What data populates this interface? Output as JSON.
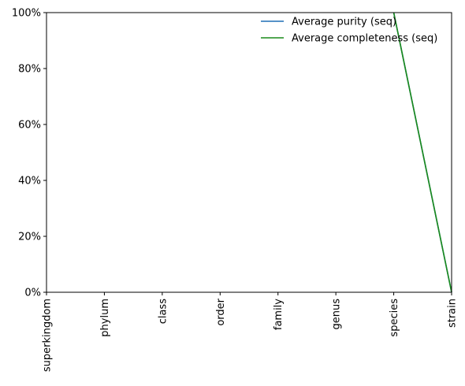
{
  "chart_data": {
    "type": "line",
    "categories": [
      "superkingdom",
      "phylum",
      "class",
      "order",
      "family",
      "genus",
      "species",
      "strain"
    ],
    "y_ticks": [
      "0%",
      "20%",
      "40%",
      "60%",
      "80%",
      "100%"
    ],
    "ylim": [
      0,
      100
    ],
    "legend_position": "top-right",
    "grid": false,
    "series": [
      {
        "name": "Average purity (seq)",
        "color": "#1f6fb5",
        "values": [
          null,
          null,
          null,
          null,
          null,
          null,
          100,
          0
        ]
      },
      {
        "name": "Average completeness (seq)",
        "color": "#1a8a1a",
        "values": [
          null,
          null,
          null,
          null,
          null,
          null,
          100,
          0
        ]
      }
    ]
  }
}
